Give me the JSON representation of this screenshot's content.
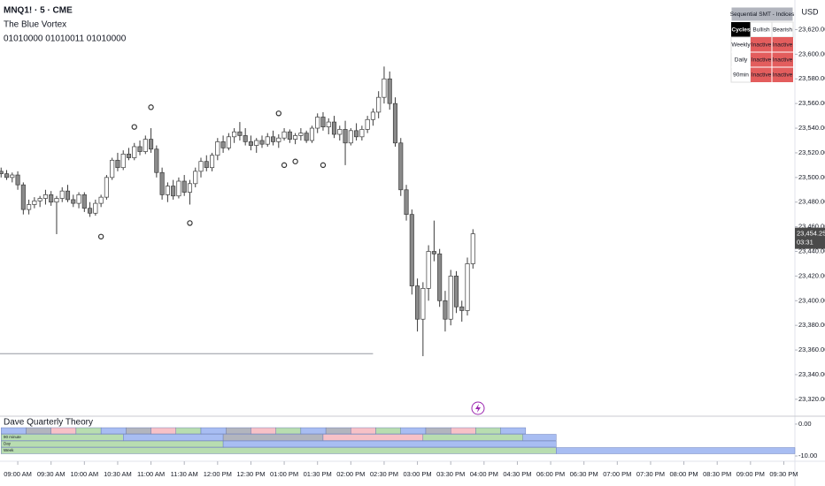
{
  "header": {
    "symbol": "MNQ1! · 5 · CME",
    "title": "The Blue Vortex",
    "code": "01010000 01010011 01010000"
  },
  "table": {
    "header": "Sequential SMT - Indices",
    "rows": [
      [
        "Cycles",
        "Bullish",
        "Bearish"
      ],
      [
        "Weekly",
        "Inactive",
        "Inactive"
      ],
      [
        "Daily",
        "Inactive",
        "Inactive"
      ],
      [
        "90min",
        "Inactive",
        "Inactive"
      ]
    ]
  },
  "chart_data": {
    "type": "candlestick",
    "currency": "USD",
    "up_color": "#ffffff",
    "down_color": "#8a8a8a",
    "border_color": "#3c3c3c",
    "grid": false,
    "ohlc": [
      [
        23505,
        23508,
        23500,
        23503
      ],
      [
        23503,
        23506,
        23498,
        23500
      ],
      [
        23500,
        23504,
        23496,
        23502
      ],
      [
        23502,
        23505,
        23490,
        23494
      ],
      [
        23494,
        23496,
        23470,
        23474
      ],
      [
        23474,
        23482,
        23470,
        23478
      ],
      [
        23478,
        23484,
        23475,
        23481
      ],
      [
        23481,
        23485,
        23476,
        23483
      ],
      [
        23483,
        23490,
        23478,
        23486
      ],
      [
        23486,
        23489,
        23477,
        23480
      ],
      [
        23480,
        23485,
        23454,
        23483
      ],
      [
        23483,
        23492,
        23480,
        23489
      ],
      [
        23489,
        23494,
        23480,
        23482
      ],
      [
        23482,
        23486,
        23476,
        23479
      ],
      [
        23479,
        23488,
        23475,
        23486
      ],
      [
        23486,
        23488,
        23472,
        23475
      ],
      [
        23475,
        23480,
        23468,
        23471
      ],
      [
        23471,
        23482,
        23469,
        23479
      ],
      [
        23479,
        23486,
        23476,
        23484
      ],
      [
        23484,
        23502,
        23482,
        23500
      ],
      [
        23500,
        23516,
        23498,
        23514
      ],
      [
        23514,
        23520,
        23505,
        23508
      ],
      [
        23508,
        23522,
        23506,
        23519
      ],
      [
        23519,
        23524,
        23514,
        23516
      ],
      [
        23516,
        23528,
        23514,
        23525
      ],
      [
        23525,
        23530,
        23518,
        23521
      ],
      [
        23521,
        23534,
        23519,
        23531
      ],
      [
        23531,
        23540,
        23520,
        23523
      ],
      [
        23523,
        23526,
        23500,
        23504
      ],
      [
        23504,
        23508,
        23482,
        23486
      ],
      [
        23486,
        23496,
        23480,
        23493
      ],
      [
        23493,
        23498,
        23482,
        23485
      ],
      [
        23485,
        23500,
        23483,
        23497
      ],
      [
        23497,
        23502,
        23485,
        23488
      ],
      [
        23488,
        23498,
        23478,
        23495
      ],
      [
        23495,
        23508,
        23492,
        23505
      ],
      [
        23505,
        23516,
        23500,
        23513
      ],
      [
        23513,
        23518,
        23505,
        23508
      ],
      [
        23508,
        23520,
        23505,
        23518
      ],
      [
        23518,
        23532,
        23514,
        23529
      ],
      [
        23529,
        23534,
        23520,
        23524
      ],
      [
        23524,
        23536,
        23522,
        23533
      ],
      [
        23533,
        23540,
        23528,
        23537
      ],
      [
        23537,
        23545,
        23530,
        23534
      ],
      [
        23534,
        23540,
        23526,
        23529
      ],
      [
        23529,
        23534,
        23522,
        23526
      ],
      [
        23526,
        23532,
        23520,
        23530
      ],
      [
        23530,
        23534,
        23524,
        23527
      ],
      [
        23527,
        23536,
        23525,
        23533
      ],
      [
        23533,
        23538,
        23526,
        23529
      ],
      [
        23529,
        23535,
        23524,
        23532
      ],
      [
        23532,
        23540,
        23530,
        23537
      ],
      [
        23537,
        23539,
        23528,
        23531
      ],
      [
        23531,
        23536,
        23527,
        23534
      ],
      [
        23534,
        23540,
        23530,
        23536
      ],
      [
        23536,
        23538,
        23528,
        23530
      ],
      [
        23530,
        23542,
        23528,
        23540
      ],
      [
        23540,
        23552,
        23536,
        23549
      ],
      [
        23549,
        23553,
        23538,
        23541
      ],
      [
        23541,
        23548,
        23535,
        23545
      ],
      [
        23545,
        23550,
        23532,
        23535
      ],
      [
        23535,
        23542,
        23530,
        23539
      ],
      [
        23539,
        23546,
        23510,
        23528
      ],
      [
        23528,
        23540,
        23526,
        23538
      ],
      [
        23538,
        23544,
        23530,
        23533
      ],
      [
        23533,
        23542,
        23530,
        23539
      ],
      [
        23539,
        23550,
        23536,
        23547
      ],
      [
        23547,
        23556,
        23542,
        23553
      ],
      [
        23553,
        23570,
        23548,
        23565
      ],
      [
        23565,
        23590,
        23560,
        23580
      ],
      [
        23580,
        23586,
        23555,
        23560
      ],
      [
        23560,
        23565,
        23525,
        23528
      ],
      [
        23528,
        23532,
        23485,
        23490
      ],
      [
        23490,
        23494,
        23465,
        23470
      ],
      [
        23470,
        23474,
        23405,
        23412
      ],
      [
        23412,
        23418,
        23375,
        23385
      ],
      [
        23385,
        23415,
        23355,
        23410
      ],
      [
        23410,
        23445,
        23400,
        23440
      ],
      [
        23440,
        23465,
        23432,
        23438
      ],
      [
        23438,
        23442,
        23395,
        23400
      ],
      [
        23400,
        23408,
        23375,
        23385
      ],
      [
        23385,
        23425,
        23380,
        23420
      ],
      [
        23420,
        23424,
        23390,
        23395
      ],
      [
        23395,
        23400,
        23383,
        23392
      ],
      [
        23392,
        23435,
        23388,
        23430
      ],
      [
        23430,
        23458,
        23426,
        23454.25
      ]
    ],
    "markers": {
      "x": [
        18,
        24,
        27,
        34,
        50,
        51,
        53,
        58
      ],
      "y": [
        23452,
        23541,
        23557,
        23463,
        23552,
        23510,
        23513,
        23510
      ]
    },
    "level_line": {
      "value": 23357,
      "x_end": 67
    },
    "last_price": {
      "value": 23454.25,
      "label": "23,454.25"
    },
    "countdown": "03:31",
    "xlim": [
      -0.2,
      143
    ],
    "xticks": [
      {
        "value": 3,
        "label": "09:00 AM"
      },
      {
        "value": 9,
        "label": "09:30 AM"
      },
      {
        "value": 15,
        "label": "10:00 AM"
      },
      {
        "value": 21,
        "label": "10:30 AM"
      },
      {
        "value": 27,
        "label": "11:00 AM"
      },
      {
        "value": 33,
        "label": "11:30 AM"
      },
      {
        "value": 39,
        "label": "12:00 PM"
      },
      {
        "value": 45,
        "label": "12:30 PM"
      },
      {
        "value": 51,
        "label": "01:00 PM"
      },
      {
        "value": 57,
        "label": "01:30 PM"
      },
      {
        "value": 63,
        "label": "02:00 PM"
      },
      {
        "value": 69,
        "label": "02:30 PM"
      },
      {
        "value": 75,
        "label": "03:00 PM"
      },
      {
        "value": 81,
        "label": "03:30 PM"
      },
      {
        "value": 87,
        "label": "04:00 PM"
      },
      {
        "value": 93,
        "label": "04:30 PM"
      },
      {
        "value": 99,
        "label": "06:00 PM"
      },
      {
        "value": 105,
        "label": "06:30 PM"
      },
      {
        "value": 111,
        "label": "07:00 PM"
      },
      {
        "value": 117,
        "label": "07:30 PM"
      },
      {
        "value": 123,
        "label": "08:00 PM"
      },
      {
        "value": 129,
        "label": "08:30 PM"
      },
      {
        "value": 135,
        "label": "09:00 PM"
      },
      {
        "value": 141,
        "label": "09:30 PM"
      }
    ],
    "ylim": [
      23307,
      23644
    ],
    "yticks": [
      {
        "value": 23320,
        "label": "23,320.00"
      },
      {
        "value": 23340,
        "label": "23,340.00"
      },
      {
        "value": 23360,
        "label": "23,360.00"
      },
      {
        "value": 23380,
        "label": "23,380.00"
      },
      {
        "value": 23400,
        "label": "23,400.00"
      },
      {
        "value": 23420,
        "label": "23,420.00"
      },
      {
        "value": 23440,
        "label": "23,440.00"
      },
      {
        "value": 23460,
        "label": "23,460.00"
      },
      {
        "value": 23480,
        "label": "23,480.00"
      },
      {
        "value": 23500,
        "label": "23,500.00"
      },
      {
        "value": 23520,
        "label": "23,520.00"
      },
      {
        "value": 23540,
        "label": "23,540.00"
      },
      {
        "value": 23560,
        "label": "23,560.00"
      },
      {
        "value": 23580,
        "label": "23,580.00"
      },
      {
        "value": 23600,
        "label": "23,600.00"
      },
      {
        "value": 23620,
        "label": "23,620.00"
      }
    ]
  },
  "indicator": {
    "title": "Dave Quarterly Theory",
    "ylim": [
      -11.1,
      2.2
    ],
    "yticks": [
      {
        "value": 0,
        "label": "0.00"
      },
      {
        "value": -10,
        "label": "-10.00"
      }
    ],
    "rows": [
      {
        "colors": [
          "#a8bdf2",
          "#b2b5be",
          "#f7c1c7",
          "#b8ddb0",
          "#a8bdf2",
          "#b2b5be",
          "#f7c1c7",
          "#b8ddb0",
          "#a8bdf2",
          "#b2b5be",
          "#f7c1c7",
          "#b8ddb0",
          "#a8bdf2",
          "#b2b5be",
          "#f7c1c7",
          "#b8ddb0",
          "#a8bdf2",
          "#b2b5be",
          "#f7c1c7",
          "#b8ddb0",
          "#a8bdf2"
        ],
        "edges": [
          0,
          4.5,
          9,
          13.5,
          18,
          22.5,
          27,
          31.5,
          36,
          40.5,
          45,
          49.5,
          54,
          58.5,
          63,
          67.5,
          72,
          76.5,
          81,
          85.5,
          90,
          94.5
        ]
      },
      {
        "label": "90 minute",
        "colors": [
          "#b8ddb0",
          "#a8bdf2",
          "#b2b5be",
          "#f7c1c7",
          "#b8ddb0",
          "#a8bdf2"
        ],
        "edges": [
          0,
          22,
          40,
          58,
          76,
          94,
          100
        ]
      },
      {
        "label": "Day",
        "colors": [
          "#b8ddb0",
          "#a8bdf2"
        ],
        "edges": [
          0,
          40,
          100
        ]
      },
      {
        "label": "Week",
        "colors": [
          "#b8ddb0",
          "#a8bdf2"
        ],
        "edges": [
          0,
          100,
          143
        ]
      }
    ]
  }
}
